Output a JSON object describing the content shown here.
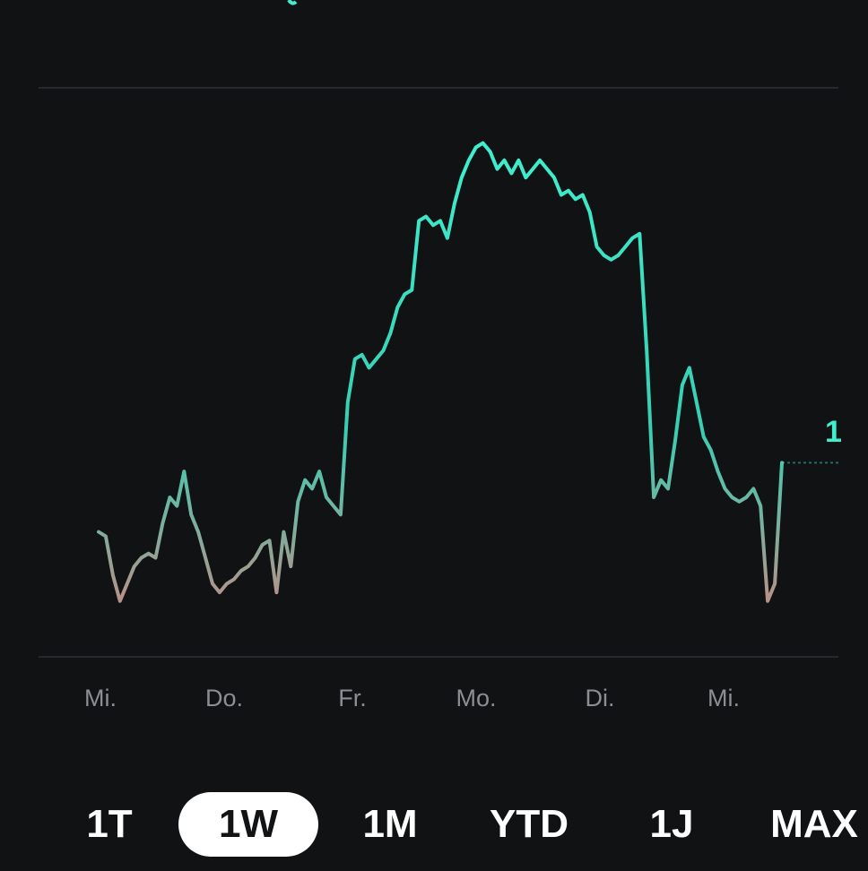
{
  "colors": {
    "background": "#101214",
    "line_high": "#3ff0cf",
    "line_low": "#c58a84",
    "gridline": "#25282c",
    "axis_text": "#8b8f94"
  },
  "chart_data": {
    "type": "line",
    "grid": true,
    "title": "",
    "xlabel": "",
    "ylabel": "",
    "x_tick_labels": [
      "Mi.",
      "Do.",
      "Fr.",
      "Mo.",
      "Di.",
      "Mi."
    ],
    "right_edge_label": "1",
    "series": [
      {
        "values": [
          50,
          49.5,
          45,
          42,
          44,
          46,
          47,
          47.5,
          47,
          51,
          54,
          53,
          57,
          52,
          50,
          47,
          44,
          43,
          44,
          44.5,
          45.5,
          46,
          47,
          48.5,
          49,
          43,
          50,
          46,
          53.5,
          56,
          55,
          57,
          54,
          53,
          52,
          65,
          70,
          70.5,
          69,
          70,
          71,
          73,
          76,
          77.5,
          78,
          86,
          86.5,
          85.5,
          86,
          84,
          88,
          91,
          93,
          94.5,
          95,
          94,
          92,
          93,
          91.5,
          93,
          91,
          92,
          93,
          92,
          91,
          89,
          89.5,
          88.5,
          89,
          87,
          83,
          82,
          81.5,
          82,
          83,
          84,
          84.5,
          71,
          54,
          56,
          55,
          60.5,
          67,
          69,
          65,
          61,
          59.5,
          57,
          55,
          54,
          53.5,
          54,
          55,
          53,
          42,
          44,
          58
        ]
      }
    ]
  },
  "range_selector": {
    "options": [
      {
        "label": "1T",
        "selected": false
      },
      {
        "label": "1W",
        "selected": true
      },
      {
        "label": "1M",
        "selected": false
      },
      {
        "label": "YTD",
        "selected": false
      },
      {
        "label": "1J",
        "selected": false
      },
      {
        "label": "MAX",
        "selected": false
      }
    ]
  }
}
